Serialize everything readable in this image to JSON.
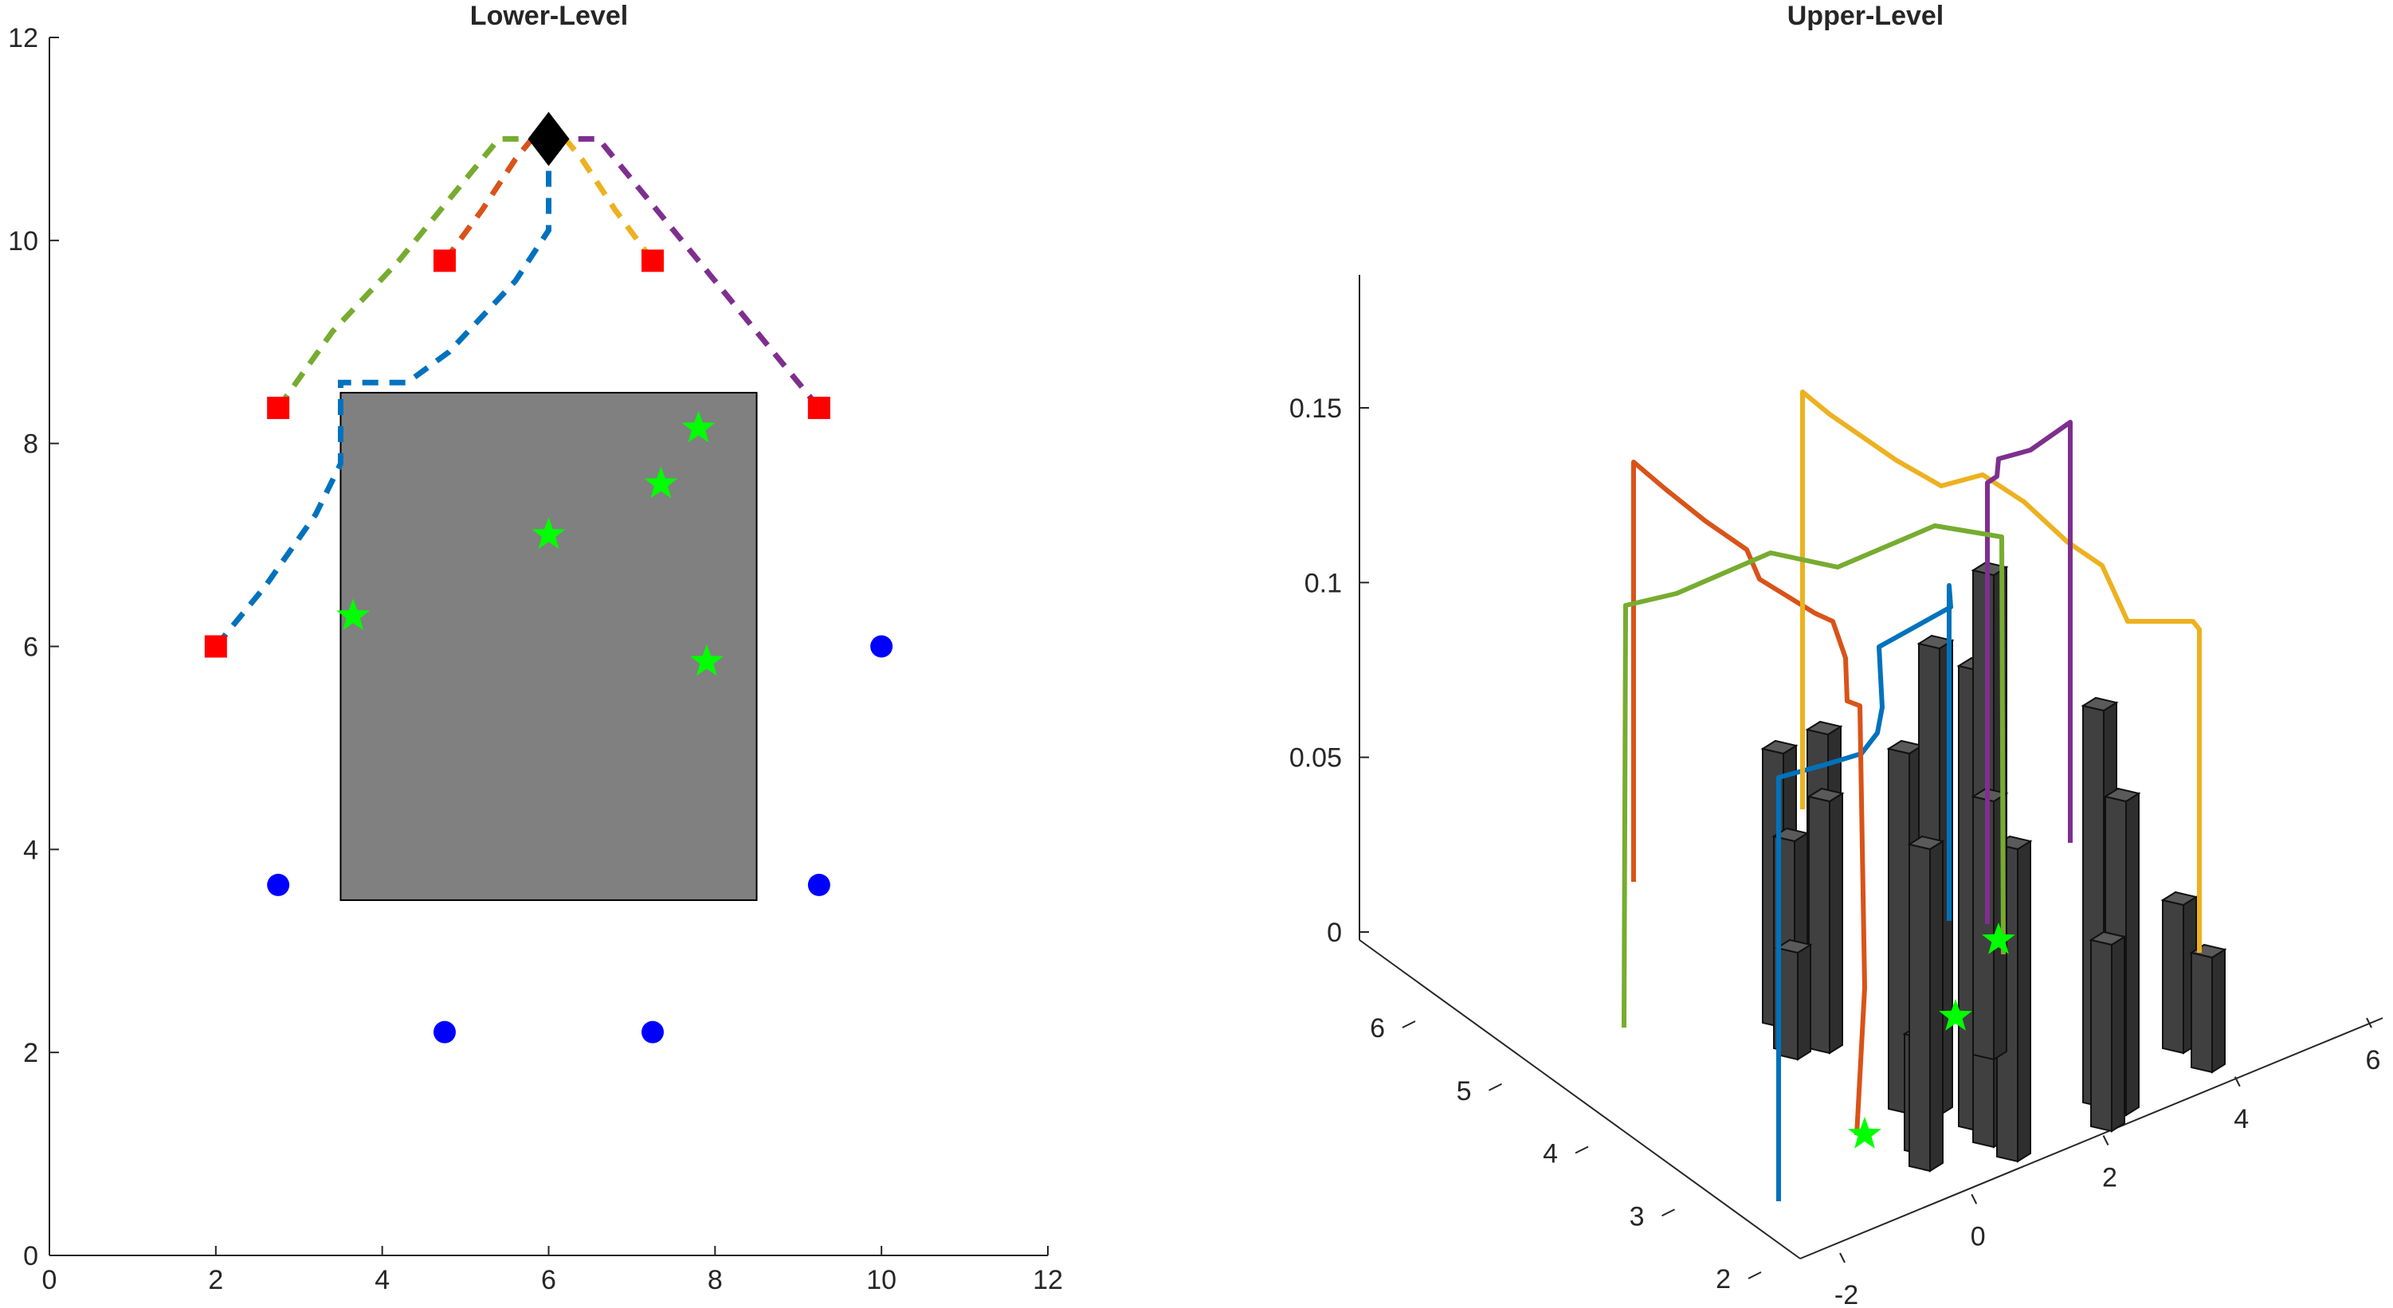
{
  "chart_data": [
    {
      "type": "scatter",
      "title": "Lower-Level",
      "xlabel": "",
      "ylabel": "",
      "xlim": [
        0,
        12
      ],
      "ylim": [
        0,
        12
      ],
      "xticks": [
        "0",
        "2",
        "4",
        "6",
        "8",
        "10",
        "12"
      ],
      "yticks": [
        "0",
        "2",
        "4",
        "6",
        "8",
        "10",
        "12"
      ],
      "grid": false,
      "obstacle": {
        "x": [
          3.5,
          8.5
        ],
        "y": [
          3.5,
          8.5
        ],
        "color": "#808080"
      },
      "hub": {
        "x": 6.0,
        "y": 11.0,
        "marker": "diamond",
        "color": "#000000"
      },
      "series": [
        {
          "marker": "square",
          "color": "#ff0000",
          "points": [
            [
              2.0,
              6.0
            ],
            [
              2.75,
              8.35
            ],
            [
              4.75,
              9.8
            ],
            [
              7.25,
              9.8
            ],
            [
              9.25,
              8.35
            ]
          ]
        },
        {
          "marker": "circle",
          "color": "#0000ff",
          "points": [
            [
              10.0,
              6.0
            ],
            [
              9.25,
              3.65
            ],
            [
              7.25,
              2.2
            ],
            [
              4.75,
              2.2
            ],
            [
              2.75,
              3.65
            ]
          ]
        },
        {
          "marker": "star",
          "color": "#00ff00",
          "points": [
            [
              3.65,
              6.3
            ],
            [
              6.0,
              7.1
            ],
            [
              7.35,
              7.6
            ],
            [
              7.8,
              8.15
            ],
            [
              7.9,
              5.85
            ]
          ]
        }
      ],
      "paths": [
        {
          "color": "#0072bd",
          "points": [
            [
              2.0,
              6.0
            ],
            [
              2.6,
              6.6
            ],
            [
              3.2,
              7.3
            ],
            [
              3.5,
              7.8
            ],
            [
              3.5,
              8.6
            ],
            [
              4.3,
              8.6
            ],
            [
              4.8,
              8.9
            ],
            [
              5.6,
              9.6
            ],
            [
              6.0,
              10.1
            ],
            [
              6.0,
              11.0
            ]
          ]
        },
        {
          "color": "#d95319",
          "points": [
            [
              4.75,
              9.8
            ],
            [
              5.2,
              10.3
            ],
            [
              5.6,
              10.8
            ],
            [
              5.8,
              11.0
            ],
            [
              6.0,
              11.0
            ]
          ]
        },
        {
          "color": "#edb120",
          "points": [
            [
              7.25,
              9.8
            ],
            [
              6.8,
              10.3
            ],
            [
              6.4,
              10.8
            ],
            [
              6.2,
              11.0
            ],
            [
              6.0,
              11.0
            ]
          ]
        },
        {
          "color": "#7e2f8e",
          "points": [
            [
              9.25,
              8.35
            ],
            [
              8.6,
              9.0
            ],
            [
              7.6,
              10.0
            ],
            [
              6.6,
              11.0
            ],
            [
              6.0,
              11.0
            ]
          ]
        },
        {
          "color": "#77ac30",
          "points": [
            [
              2.75,
              8.35
            ],
            [
              3.4,
              9.1
            ],
            [
              4.2,
              9.8
            ],
            [
              4.9,
              10.5
            ],
            [
              5.4,
              11.0
            ],
            [
              6.0,
              11.0
            ]
          ]
        }
      ]
    },
    {
      "type": "line",
      "title": "Upper-Level",
      "xlabel": "",
      "ylabel": "",
      "zlabel": "",
      "xlim": [
        -2,
        6
      ],
      "ylim": [
        2,
        6
      ],
      "zlim": [
        0,
        0.15
      ],
      "xticks": [
        "-2",
        "0",
        "2",
        "4",
        "6"
      ],
      "yticks": [
        "2",
        "3",
        "4",
        "5",
        "6"
      ],
      "zticks": [
        "0",
        "0.05",
        "0.1",
        "0.15"
      ],
      "grid": false,
      "series": [
        {
          "color": "#0072bd",
          "label_z_range": [
            0,
            0.095
          ]
        },
        {
          "color": "#d95319",
          "label_z_range": [
            0,
            0.135
          ]
        },
        {
          "color": "#edb120",
          "label_z_range": [
            0,
            0.155
          ]
        },
        {
          "color": "#7e2f8e",
          "label_z_range": [
            0,
            0.145
          ]
        },
        {
          "color": "#77ac30",
          "label_z_range": [
            0,
            0.12
          ]
        }
      ],
      "bar_color": "#404040",
      "star_color": "#00ff00"
    }
  ]
}
